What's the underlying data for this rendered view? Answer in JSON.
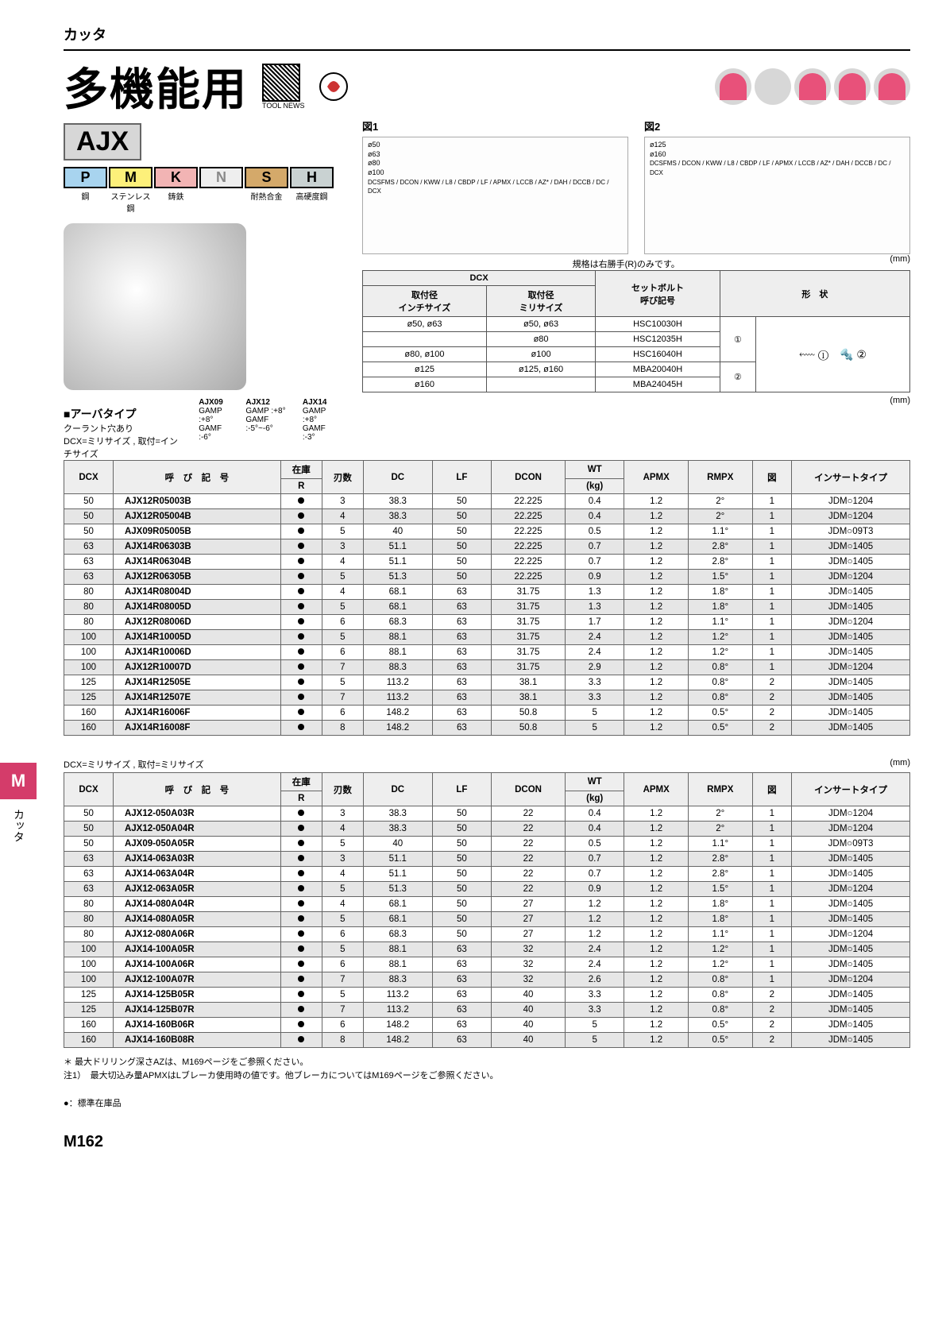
{
  "header": {
    "category": "カッタ",
    "title": "多機能用",
    "tool_news": "TOOL NEWS"
  },
  "series_label": "AJX",
  "materials": [
    {
      "code": "P",
      "name": "鋼"
    },
    {
      "code": "M",
      "name": "ステンレス鋼"
    },
    {
      "code": "K",
      "name": "鋳鉄"
    },
    {
      "code": "N",
      "name": ""
    },
    {
      "code": "S",
      "name": "耐熱合金"
    },
    {
      "code": "H",
      "name": "高硬度鋼"
    }
  ],
  "figures": {
    "fig1_title": "図1",
    "fig1_dia": "ø50\nø63\nø80\nø100",
    "fig1_labels": "DCSFMS / DCON / KWW / L8 / CBDP / LF / APMX / LCCB / AZ* / DAH / DCCB / DC / DCX",
    "fig2_title": "図2",
    "fig2_dia": "ø125\nø160",
    "note": "規格は右勝手(R)のみです。",
    "unit": "(mm)"
  },
  "bolt_table": {
    "headers": {
      "dcx": "DCX",
      "inch": "取付径\nインチサイズ",
      "mm": "取付径\nミリサイズ",
      "bolt": "セットボルト\n呼び記号",
      "shape": "形　状"
    },
    "rows": [
      {
        "inch": "ø50, ø63",
        "mm": "ø50, ø63",
        "bolt": "HSC10030H",
        "shape_grp": 1
      },
      {
        "inch": "",
        "mm": "ø80",
        "bolt": "HSC12035H",
        "shape_grp": 1
      },
      {
        "inch": "ø80, ø100",
        "mm": "ø100",
        "bolt": "HSC16040H",
        "shape_grp": 1
      },
      {
        "inch": "ø125",
        "mm": "ø125, ø160",
        "bolt": "MBA20040H",
        "shape_grp": 2
      },
      {
        "inch": "ø160",
        "mm": "",
        "bolt": "MBA24045H",
        "shape_grp": 2
      }
    ],
    "shape_glyphs": {
      "one": "①",
      "two": "②"
    }
  },
  "arbor": {
    "title": "■アーバタイプ",
    "coolant": "クーラント穴あり",
    "note": "DCX=ミリサイズ , 取付=インチサイズ",
    "gamp": [
      {
        "name": "AJX09",
        "gamp": "GAMP :+8°",
        "gamf": "GAMF :-6°"
      },
      {
        "name": "AJX12",
        "gamp": "GAMP :+8°",
        "gamf": "GAMF :-5°~-6°"
      },
      {
        "name": "AJX14",
        "gamp": "GAMP :+8°",
        "gamf": "GAMF :-3°"
      }
    ]
  },
  "table_cols": {
    "dcx": "DCX",
    "desig": "呼　び　記　号",
    "stock": "在庫",
    "stock_sub": "R",
    "teeth": "刃数",
    "dc": "DC",
    "lf": "LF",
    "dcon": "DCON",
    "wt": "WT",
    "wt_sub": "(kg)",
    "apmx": "APMX",
    "rmpx": "RMPX",
    "fig": "図",
    "insert": "インサートタイプ"
  },
  "table1": [
    {
      "dcx": 50,
      "ord": "AJX12R05003B",
      "st": 1,
      "t": 3,
      "dc": "38.3",
      "lf": 50,
      "dcon": "22.225",
      "wt": "0.4",
      "ap": "1.2",
      "rm": "2°",
      "fig": 1,
      "ins": "JDM○1204",
      "alt": 0
    },
    {
      "dcx": 50,
      "ord": "AJX12R05004B",
      "st": 1,
      "t": 4,
      "dc": "38.3",
      "lf": 50,
      "dcon": "22.225",
      "wt": "0.4",
      "ap": "1.2",
      "rm": "2°",
      "fig": 1,
      "ins": "JDM○1204",
      "alt": 1
    },
    {
      "dcx": 50,
      "ord": "AJX09R05005B",
      "st": 1,
      "t": 5,
      "dc": "40",
      "lf": 50,
      "dcon": "22.225",
      "wt": "0.5",
      "ap": "1.2",
      "rm": "1.1°",
      "fig": 1,
      "ins": "JDM○09T3",
      "alt": 0
    },
    {
      "dcx": 63,
      "ord": "AJX14R06303B",
      "st": 1,
      "t": 3,
      "dc": "51.1",
      "lf": 50,
      "dcon": "22.225",
      "wt": "0.7",
      "ap": "1.2",
      "rm": "2.8°",
      "fig": 1,
      "ins": "JDM○1405",
      "alt": 1
    },
    {
      "dcx": 63,
      "ord": "AJX14R06304B",
      "st": 1,
      "t": 4,
      "dc": "51.1",
      "lf": 50,
      "dcon": "22.225",
      "wt": "0.7",
      "ap": "1.2",
      "rm": "2.8°",
      "fig": 1,
      "ins": "JDM○1405",
      "alt": 0
    },
    {
      "dcx": 63,
      "ord": "AJX12R06305B",
      "st": 1,
      "t": 5,
      "dc": "51.3",
      "lf": 50,
      "dcon": "22.225",
      "wt": "0.9",
      "ap": "1.2",
      "rm": "1.5°",
      "fig": 1,
      "ins": "JDM○1204",
      "alt": 1
    },
    {
      "dcx": 80,
      "ord": "AJX14R08004D",
      "st": 1,
      "t": 4,
      "dc": "68.1",
      "lf": 63,
      "dcon": "31.75",
      "wt": "1.3",
      "ap": "1.2",
      "rm": "1.8°",
      "fig": 1,
      "ins": "JDM○1405",
      "alt": 0
    },
    {
      "dcx": 80,
      "ord": "AJX14R08005D",
      "st": 1,
      "t": 5,
      "dc": "68.1",
      "lf": 63,
      "dcon": "31.75",
      "wt": "1.3",
      "ap": "1.2",
      "rm": "1.8°",
      "fig": 1,
      "ins": "JDM○1405",
      "alt": 1
    },
    {
      "dcx": 80,
      "ord": "AJX12R08006D",
      "st": 1,
      "t": 6,
      "dc": "68.3",
      "lf": 63,
      "dcon": "31.75",
      "wt": "1.7",
      "ap": "1.2",
      "rm": "1.1°",
      "fig": 1,
      "ins": "JDM○1204",
      "alt": 0
    },
    {
      "dcx": 100,
      "ord": "AJX14R10005D",
      "st": 1,
      "t": 5,
      "dc": "88.1",
      "lf": 63,
      "dcon": "31.75",
      "wt": "2.4",
      "ap": "1.2",
      "rm": "1.2°",
      "fig": 1,
      "ins": "JDM○1405",
      "alt": 1
    },
    {
      "dcx": 100,
      "ord": "AJX14R10006D",
      "st": 1,
      "t": 6,
      "dc": "88.1",
      "lf": 63,
      "dcon": "31.75",
      "wt": "2.4",
      "ap": "1.2",
      "rm": "1.2°",
      "fig": 1,
      "ins": "JDM○1405",
      "alt": 0
    },
    {
      "dcx": 100,
      "ord": "AJX12R10007D",
      "st": 1,
      "t": 7,
      "dc": "88.3",
      "lf": 63,
      "dcon": "31.75",
      "wt": "2.9",
      "ap": "1.2",
      "rm": "0.8°",
      "fig": 1,
      "ins": "JDM○1204",
      "alt": 1
    },
    {
      "dcx": 125,
      "ord": "AJX14R12505E",
      "st": 1,
      "t": 5,
      "dc": "113.2",
      "lf": 63,
      "dcon": "38.1",
      "wt": "3.3",
      "ap": "1.2",
      "rm": "0.8°",
      "fig": 2,
      "ins": "JDM○1405",
      "alt": 0
    },
    {
      "dcx": 125,
      "ord": "AJX14R12507E",
      "st": 1,
      "t": 7,
      "dc": "113.2",
      "lf": 63,
      "dcon": "38.1",
      "wt": "3.3",
      "ap": "1.2",
      "rm": "0.8°",
      "fig": 2,
      "ins": "JDM○1405",
      "alt": 1
    },
    {
      "dcx": 160,
      "ord": "AJX14R16006F",
      "st": 1,
      "t": 6,
      "dc": "148.2",
      "lf": 63,
      "dcon": "50.8",
      "wt": "5",
      "ap": "1.2",
      "rm": "0.5°",
      "fig": 2,
      "ins": "JDM○1405",
      "alt": 0
    },
    {
      "dcx": 160,
      "ord": "AJX14R16008F",
      "st": 1,
      "t": 8,
      "dc": "148.2",
      "lf": 63,
      "dcon": "50.8",
      "wt": "5",
      "ap": "1.2",
      "rm": "0.5°",
      "fig": 2,
      "ins": "JDM○1405",
      "alt": 1
    }
  ],
  "table2_caption": "DCX=ミリサイズ , 取付=ミリサイズ",
  "table2": [
    {
      "dcx": 50,
      "ord": "AJX12-050A03R",
      "st": 1,
      "t": 3,
      "dc": "38.3",
      "lf": 50,
      "dcon": "22",
      "wt": "0.4",
      "ap": "1.2",
      "rm": "2°",
      "fig": 1,
      "ins": "JDM○1204",
      "alt": 0
    },
    {
      "dcx": 50,
      "ord": "AJX12-050A04R",
      "st": 1,
      "t": 4,
      "dc": "38.3",
      "lf": 50,
      "dcon": "22",
      "wt": "0.4",
      "ap": "1.2",
      "rm": "2°",
      "fig": 1,
      "ins": "JDM○1204",
      "alt": 1
    },
    {
      "dcx": 50,
      "ord": "AJX09-050A05R",
      "st": 1,
      "t": 5,
      "dc": "40",
      "lf": 50,
      "dcon": "22",
      "wt": "0.5",
      "ap": "1.2",
      "rm": "1.1°",
      "fig": 1,
      "ins": "JDM○09T3",
      "alt": 0
    },
    {
      "dcx": 63,
      "ord": "AJX14-063A03R",
      "st": 1,
      "t": 3,
      "dc": "51.1",
      "lf": 50,
      "dcon": "22",
      "wt": "0.7",
      "ap": "1.2",
      "rm": "2.8°",
      "fig": 1,
      "ins": "JDM○1405",
      "alt": 1
    },
    {
      "dcx": 63,
      "ord": "AJX14-063A04R",
      "st": 1,
      "t": 4,
      "dc": "51.1",
      "lf": 50,
      "dcon": "22",
      "wt": "0.7",
      "ap": "1.2",
      "rm": "2.8°",
      "fig": 1,
      "ins": "JDM○1405",
      "alt": 0
    },
    {
      "dcx": 63,
      "ord": "AJX12-063A05R",
      "st": 1,
      "t": 5,
      "dc": "51.3",
      "lf": 50,
      "dcon": "22",
      "wt": "0.9",
      "ap": "1.2",
      "rm": "1.5°",
      "fig": 1,
      "ins": "JDM○1204",
      "alt": 1
    },
    {
      "dcx": 80,
      "ord": "AJX14-080A04R",
      "st": 1,
      "t": 4,
      "dc": "68.1",
      "lf": 50,
      "dcon": "27",
      "wt": "1.2",
      "ap": "1.2",
      "rm": "1.8°",
      "fig": 1,
      "ins": "JDM○1405",
      "alt": 0
    },
    {
      "dcx": 80,
      "ord": "AJX14-080A05R",
      "st": 1,
      "t": 5,
      "dc": "68.1",
      "lf": 50,
      "dcon": "27",
      "wt": "1.2",
      "ap": "1.2",
      "rm": "1.8°",
      "fig": 1,
      "ins": "JDM○1405",
      "alt": 1
    },
    {
      "dcx": 80,
      "ord": "AJX12-080A06R",
      "st": 1,
      "t": 6,
      "dc": "68.3",
      "lf": 50,
      "dcon": "27",
      "wt": "1.2",
      "ap": "1.2",
      "rm": "1.1°",
      "fig": 1,
      "ins": "JDM○1204",
      "alt": 0
    },
    {
      "dcx": 100,
      "ord": "AJX14-100A05R",
      "st": 1,
      "t": 5,
      "dc": "88.1",
      "lf": 63,
      "dcon": "32",
      "wt": "2.4",
      "ap": "1.2",
      "rm": "1.2°",
      "fig": 1,
      "ins": "JDM○1405",
      "alt": 1
    },
    {
      "dcx": 100,
      "ord": "AJX14-100A06R",
      "st": 1,
      "t": 6,
      "dc": "88.1",
      "lf": 63,
      "dcon": "32",
      "wt": "2.4",
      "ap": "1.2",
      "rm": "1.2°",
      "fig": 1,
      "ins": "JDM○1405",
      "alt": 0
    },
    {
      "dcx": 100,
      "ord": "AJX12-100A07R",
      "st": 1,
      "t": 7,
      "dc": "88.3",
      "lf": 63,
      "dcon": "32",
      "wt": "2.6",
      "ap": "1.2",
      "rm": "0.8°",
      "fig": 1,
      "ins": "JDM○1204",
      "alt": 1
    },
    {
      "dcx": 125,
      "ord": "AJX14-125B05R",
      "st": 1,
      "t": 5,
      "dc": "113.2",
      "lf": 63,
      "dcon": "40",
      "wt": "3.3",
      "ap": "1.2",
      "rm": "0.8°",
      "fig": 2,
      "ins": "JDM○1405",
      "alt": 0
    },
    {
      "dcx": 125,
      "ord": "AJX14-125B07R",
      "st": 1,
      "t": 7,
      "dc": "113.2",
      "lf": 63,
      "dcon": "40",
      "wt": "3.3",
      "ap": "1.2",
      "rm": "0.8°",
      "fig": 2,
      "ins": "JDM○1405",
      "alt": 1
    },
    {
      "dcx": 160,
      "ord": "AJX14-160B06R",
      "st": 1,
      "t": 6,
      "dc": "148.2",
      "lf": 63,
      "dcon": "40",
      "wt": "5",
      "ap": "1.2",
      "rm": "0.5°",
      "fig": 2,
      "ins": "JDM○1405",
      "alt": 0
    },
    {
      "dcx": 160,
      "ord": "AJX14-160B08R",
      "st": 1,
      "t": 8,
      "dc": "148.2",
      "lf": 63,
      "dcon": "40",
      "wt": "5",
      "ap": "1.2",
      "rm": "0.5°",
      "fig": 2,
      "ins": "JDM○1405",
      "alt": 1
    }
  ],
  "footnotes": {
    "star": "＊ 最大ドリリング深さAZは、M169ページをご参照ください。",
    "note1": "注1）　最大切込み量APMXはLブレーカ使用時の値です。他ブレーカについてはM169ページをご参照ください。",
    "stock_legend": "●：標準在庫品"
  },
  "page_number": "M162",
  "side_tab": {
    "letter": "M",
    "text": "カッタ"
  },
  "col_widths": {
    "dcx": 50,
    "ord": 170,
    "st": 42,
    "t": 42,
    "dc": 70,
    "lf": 60,
    "dcon": 75,
    "wt": 60,
    "ap": 65,
    "rm": 65,
    "fig": 40,
    "ins": 120
  },
  "colors": {
    "accent_pink": "#d43c6a",
    "grey_row": "#e6e6e6",
    "header_bg": "#eeeeee",
    "border": "#666666"
  }
}
